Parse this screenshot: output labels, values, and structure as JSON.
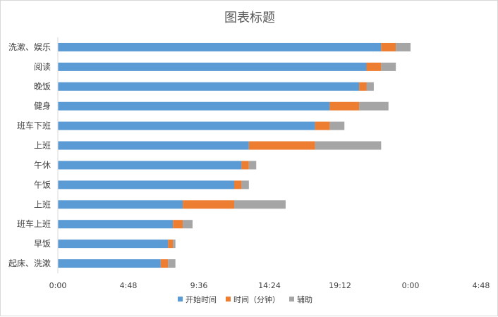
{
  "chart_data": {
    "type": "bar",
    "orientation": "horizontal",
    "stacked": true,
    "title": "图表标题",
    "categories": [
      "起床、洗漱",
      "早饭",
      "班车上班",
      "上班",
      "午饭",
      "午休",
      "上班",
      "班车下班",
      "健身",
      "晚饭",
      "阅读",
      "洗漱、娱乐"
    ],
    "x_unit": "minutes since 0:00",
    "xlim": [
      0,
      1728
    ],
    "x_ticks": [
      {
        "value": 0,
        "label": "0:00"
      },
      {
        "value": 288,
        "label": "4:48"
      },
      {
        "value": 576,
        "label": "9:36"
      },
      {
        "value": 864,
        "label": "14:24"
      },
      {
        "value": 1152,
        "label": "19:12"
      },
      {
        "value": 1440,
        "label": "0:00"
      },
      {
        "value": 1728,
        "label": "4:48"
      }
    ],
    "series": [
      {
        "name": "开始时间",
        "color": "#5B9BD5",
        "values": [
          420,
          450,
          470,
          510,
          720,
          750,
          780,
          1050,
          1110,
          1230,
          1260,
          1320
        ]
      },
      {
        "name": "时间（分钟）",
        "color": "#ED7D31",
        "values": [
          30,
          20,
          40,
          210,
          30,
          30,
          270,
          60,
          120,
          30,
          60,
          60
        ]
      },
      {
        "name": "辅助",
        "color": "#A5A5A5",
        "values": [
          30,
          10,
          40,
          210,
          30,
          30,
          270,
          60,
          120,
          30,
          60,
          60
        ]
      }
    ],
    "grid": "vertical-none",
    "legend_position": "bottom"
  }
}
